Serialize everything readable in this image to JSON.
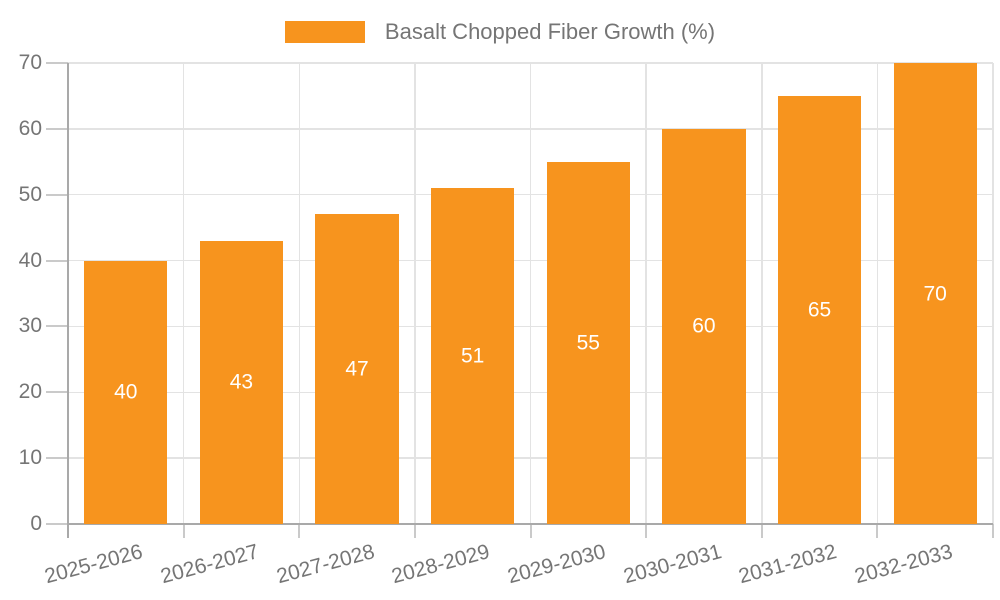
{
  "legend": {
    "series_label": "Basalt Chopped Fiber Growth (%)"
  },
  "chart_data": {
    "type": "bar",
    "title": "",
    "xlabel": "",
    "ylabel": "",
    "categories": [
      "2025-2026",
      "2026-2027",
      "2027-2028",
      "2028-2029",
      "2029-2030",
      "2030-2031",
      "2031-2032",
      "2032-2033"
    ],
    "values": [
      40,
      43,
      47,
      51,
      55,
      60,
      65,
      70
    ],
    "series_name": "Basalt Chopped Fiber Growth (%)",
    "ylim": [
      0,
      70
    ],
    "yticks": [
      0,
      10,
      20,
      30,
      40,
      50,
      60,
      70
    ],
    "grid": true,
    "legend_position": "top-center",
    "bar_label_position": "inside-center",
    "x_tick_rotation_deg": -15,
    "bar_color": "#F7941E",
    "bar_label_color": "#ffffff",
    "grid_color": "#e3e3e3",
    "axis_color": "#a9a9a9",
    "tick_color": "#cacaca",
    "tick_label_color": "#757575",
    "background_color": "#ffffff"
  }
}
